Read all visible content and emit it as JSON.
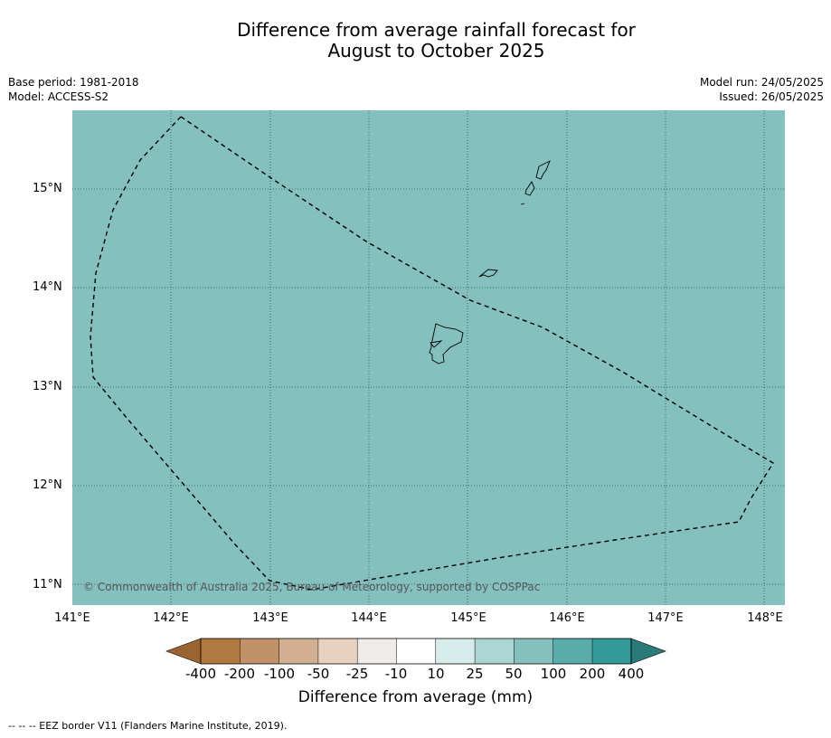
{
  "title": {
    "line1": "Difference from average rainfall forecast for",
    "line2": "August to October 2025"
  },
  "meta_left": {
    "base_period": "Base period: 1981-2018",
    "model": "Model: ACCESS-S2"
  },
  "meta_right": {
    "model_run": "Model run: 24/05/2025",
    "issued": "Issued: 26/05/2025"
  },
  "map": {
    "background_color": "#84c0be",
    "lat_labels": [
      "15°N",
      "14°N",
      "13°N",
      "12°N",
      "11°N"
    ],
    "lon_labels": [
      "141°E",
      "142°E",
      "143°E",
      "144°E",
      "145°E",
      "146°E",
      "147°E",
      "148°E"
    ],
    "copyright": "© Commonwealth of Australia 2025, Bureau of Meteorology, supported by COSPPac"
  },
  "colorbar": {
    "title": "Difference from average (mm)",
    "ticks": [
      "-400",
      "-200",
      "-100",
      "-50",
      "-25",
      "-10",
      "10",
      "25",
      "50",
      "100",
      "200",
      "400"
    ],
    "colors": [
      "#9a6432",
      "#b17942",
      "#c19169",
      "#d4b093",
      "#e8d1be",
      "#efebe8",
      "#ffffff",
      "#d6ecea",
      "#acd5d4",
      "#84c0be",
      "#5aacab",
      "#339a98",
      "#2a7a79"
    ]
  },
  "footer": "--  --  -- EEZ border V11 (Flanders Marine Institute, 2019)."
}
